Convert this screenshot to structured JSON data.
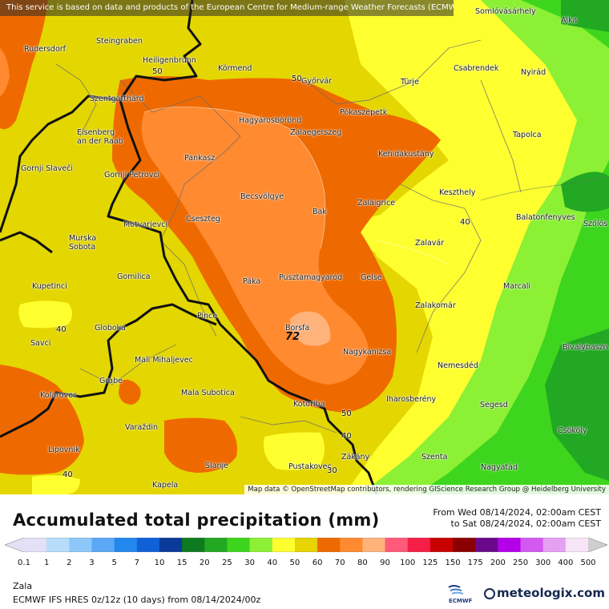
{
  "map": {
    "attribution_top": "This service is based on data and products of the European Centre for Medium-range Weather Forecasts (ECMWF)",
    "attribution_bottom": "Map data © OpenStreetMap contributors, rendering GIScience Research Group @ Heidelberg University",
    "max_value_label": "72",
    "contour_labels": [
      "50",
      "50",
      "50",
      "40",
      "40",
      "40",
      "40",
      "30"
    ],
    "places": [
      {
        "name": "Somlóvásárhely"
      },
      {
        "name": "Ajka"
      },
      {
        "name": "Steingraben"
      },
      {
        "name": "Rudersdorf"
      },
      {
        "name": "Heiligenbrunn"
      },
      {
        "name": "Körmend"
      },
      {
        "name": "Győrvár"
      },
      {
        "name": "Türje"
      },
      {
        "name": "Csabrendek"
      },
      {
        "name": "Nyirád"
      },
      {
        "name": "Szentgotthárd"
      },
      {
        "name": "Pókaszepetk"
      },
      {
        "name": "Hagyárosbőrönd"
      },
      {
        "name": "Tapolca"
      },
      {
        "name": "Eisenberg an der Raab"
      },
      {
        "name": "Zalaegerszeg"
      },
      {
        "name": "Kehidakustány"
      },
      {
        "name": "Pankasz"
      },
      {
        "name": "Gornji Slaveči"
      },
      {
        "name": "Gornji Petrovci"
      },
      {
        "name": "Keszthely"
      },
      {
        "name": "Becsvölgye"
      },
      {
        "name": "Zalaigrice"
      },
      {
        "name": "Bak"
      },
      {
        "name": "Cseszteg"
      },
      {
        "name": "Balatonfenyves"
      },
      {
        "name": "Szőlős"
      },
      {
        "name": "Motvarjevci"
      },
      {
        "name": "Murska Sobota"
      },
      {
        "name": "Zalavár"
      },
      {
        "name": "Gomilica"
      },
      {
        "name": "Páka"
      },
      {
        "name": "Pusztamagyaród"
      },
      {
        "name": "Gelse"
      },
      {
        "name": "Marcali"
      },
      {
        "name": "Kupetinci"
      },
      {
        "name": "Zalakomár"
      },
      {
        "name": "Pince"
      },
      {
        "name": "Borsfa"
      },
      {
        "name": "Globoka"
      },
      {
        "name": "Savci"
      },
      {
        "name": "Nagykanizsa"
      },
      {
        "name": "Bivalybaszn"
      },
      {
        "name": "Mali Mihaljevec"
      },
      {
        "name": "Nemesdéd"
      },
      {
        "name": "Grabe"
      },
      {
        "name": "Mala Subotica"
      },
      {
        "name": "Kolarovec"
      },
      {
        "name": "Iharosberény"
      },
      {
        "name": "Kotoriba"
      },
      {
        "name": "Segesd"
      },
      {
        "name": "Varaždin"
      },
      {
        "name": "Csököly"
      },
      {
        "name": "Lipovnik"
      },
      {
        "name": "Zákány"
      },
      {
        "name": "Szenta"
      },
      {
        "name": "Slanje"
      },
      {
        "name": "Pustakovec"
      },
      {
        "name": "Nagyatád"
      },
      {
        "name": "Kapela"
      }
    ]
  },
  "title": "Accumulated total precipitation (mm)",
  "dates": {
    "from": "From Wed 08/14/2024, 02:00am CEST",
    "to": "to Sat 08/24/2024, 02:00am CEST"
  },
  "legend": {
    "ticks": [
      "0.1",
      "1",
      "2",
      "3",
      "5",
      "7",
      "10",
      "15",
      "20",
      "25",
      "30",
      "40",
      "50",
      "60",
      "70",
      "80",
      "90",
      "100",
      "125",
      "150",
      "175",
      "200",
      "250",
      "300",
      "400",
      "500"
    ],
    "colors": [
      "#e4e0f7",
      "#b7dcfc",
      "#8ec8fb",
      "#5aa8f6",
      "#2288ee",
      "#1060d8",
      "#0a3a9a",
      "#0e7a1f",
      "#22a822",
      "#3ed51e",
      "#8cf035",
      "#ffff30",
      "#e7d400",
      "#ee6a00",
      "#ff8a30",
      "#ffb27a",
      "#ff5a7a",
      "#f51e46",
      "#c80000",
      "#8a0000",
      "#6a0a8a",
      "#b400e8",
      "#d25af0",
      "#e6a0f2",
      "#f7e4f7",
      "#cfcfcf"
    ]
  },
  "footer": {
    "region": "Zala",
    "model": "ECMWF IFS HRES 0z/12z (10 days) from 08/14/2024/00z",
    "ecmwf_label": "ECMWF",
    "brand": "meteologix.com"
  }
}
